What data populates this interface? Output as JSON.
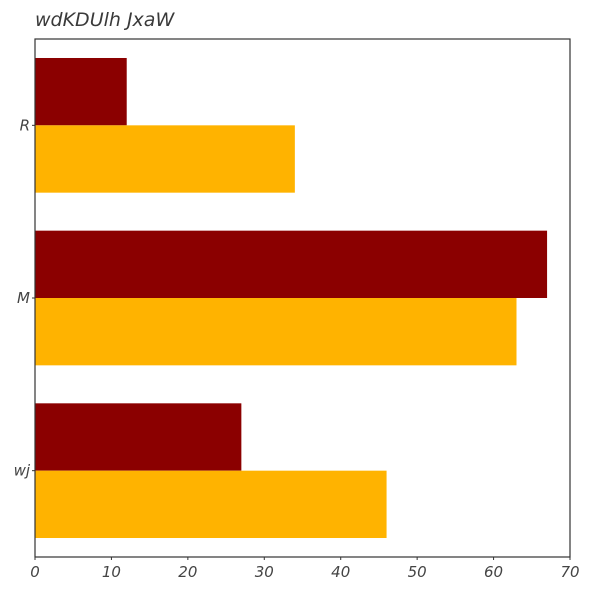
{
  "chart_data": {
    "type": "bar",
    "orientation": "horizontal",
    "title": "wdKDUlh JxaW",
    "xlabel": "",
    "ylabel": "",
    "categories": [
      "R",
      "M",
      "wj"
    ],
    "series": [
      {
        "values": [
          12,
          67,
          27
        ],
        "color": "#8b0000"
      },
      {
        "values": [
          34,
          63,
          46
        ],
        "color": "#ffb300"
      }
    ],
    "xlim": [
      0,
      70
    ],
    "xticks": [
      0,
      10,
      20,
      30,
      40,
      50,
      60,
      70
    ],
    "grid": false,
    "legend": "none"
  }
}
